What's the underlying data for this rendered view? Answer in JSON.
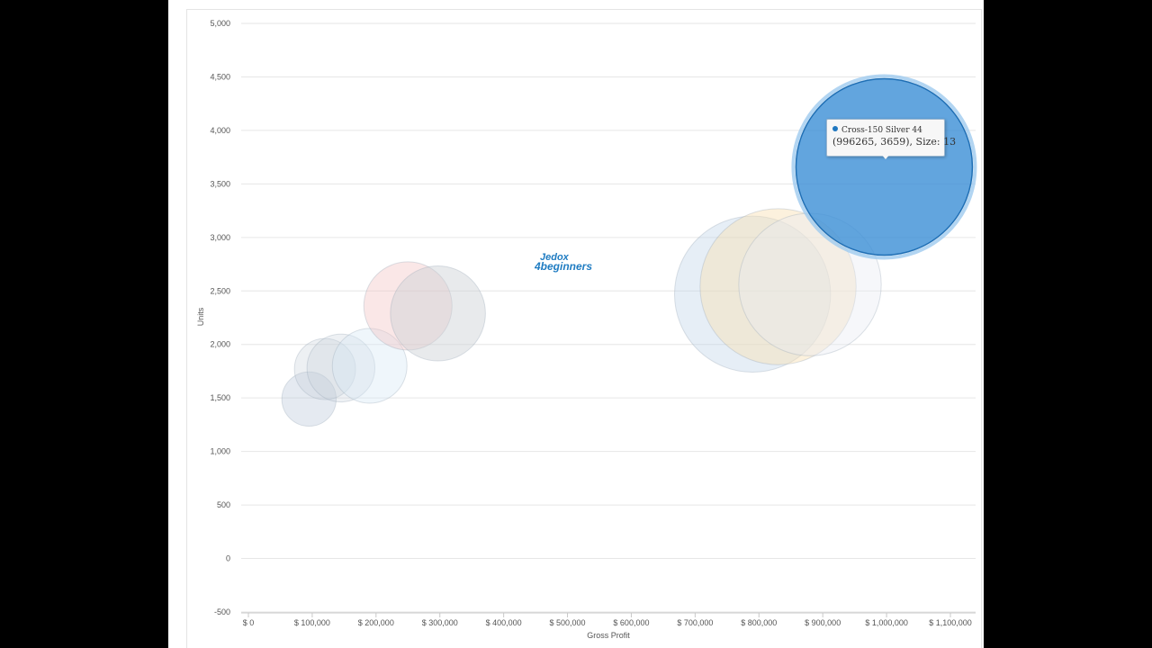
{
  "colors": {
    "background": "#000000",
    "page": "#ffffff",
    "grid": "#e6e6e6",
    "highlight": "#3b8fd6"
  },
  "watermark": {
    "line1": "Jedox",
    "line2": "4beginners"
  },
  "tooltip": {
    "series": "Cross-150 Silver 44",
    "text": "(996265, 3659), Size: 13"
  },
  "chart_data": {
    "type": "scatter",
    "variant": "bubble",
    "xlabel": "Gross Profit",
    "ylabel": "Units",
    "xlim": [
      0,
      1100000
    ],
    "ylim": [
      -500,
      5000
    ],
    "x_ticks": [
      0,
      100000,
      200000,
      300000,
      400000,
      500000,
      600000,
      700000,
      800000,
      900000,
      1000000,
      1100000
    ],
    "x_tick_labels": [
      "$ 0",
      "$ 100,000",
      "$ 200,000",
      "$ 300,000",
      "$ 400,000",
      "$ 500,000",
      "$ 600,000",
      "$ 700,000",
      "$ 800,000",
      "$ 900,000",
      "$ 1,000,000",
      "$ 1,100,000"
    ],
    "y_ticks": [
      -500,
      0,
      500,
      1000,
      1500,
      2000,
      2500,
      3000,
      3500,
      4000,
      4500,
      5000
    ],
    "y_tick_labels": [
      "-500",
      "0",
      "500",
      "1,000",
      "1,500",
      "2,000",
      "2,500",
      "3,000",
      "3,500",
      "4,000",
      "4,500",
      "5,000"
    ],
    "grid": true,
    "legend": "none",
    "points": [
      {
        "x": 95000,
        "y": 1490,
        "size": 4,
        "color": "#b4c3d6",
        "opacity": 0.35
      },
      {
        "x": 120000,
        "y": 1770,
        "size": 4.5,
        "color": "#c3ccd8",
        "opacity": 0.3
      },
      {
        "x": 145000,
        "y": 1780,
        "size": 5,
        "color": "#c8d0da",
        "opacity": 0.3
      },
      {
        "x": 190000,
        "y": 1800,
        "size": 5.5,
        "color": "#d8e8f5",
        "opacity": 0.4
      },
      {
        "x": 250000,
        "y": 2360,
        "size": 6.5,
        "color": "#f3c4c4",
        "opacity": 0.4
      },
      {
        "x": 297000,
        "y": 2290,
        "size": 7,
        "color": "#cdd0d5",
        "opacity": 0.45
      },
      {
        "x": 790000,
        "y": 2470,
        "size": 11.5,
        "color": "#b8cde4",
        "opacity": 0.35
      },
      {
        "x": 830000,
        "y": 2540,
        "size": 11.5,
        "color": "#f8dfb4",
        "opacity": 0.45
      },
      {
        "x": 880000,
        "y": 2560,
        "size": 10.5,
        "color": "#e8ebf3",
        "opacity": 0.4
      },
      {
        "x": 996265,
        "y": 3659,
        "size": 13,
        "color": "#3b8fd6",
        "opacity": 0.8,
        "highlighted": true,
        "name": "Cross-150 Silver 44"
      }
    ]
  }
}
